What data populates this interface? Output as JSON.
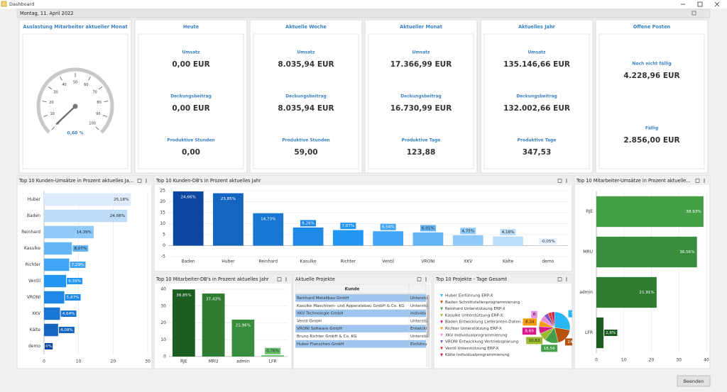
{
  "window_title": "Dashboard",
  "date": "Montag, 11. April 2022",
  "gauge": {
    "title": "Auslastung Mitarbeiter aktueller Monat",
    "ticks": [
      0,
      10,
      20,
      30,
      40,
      50,
      60,
      70,
      80,
      90,
      100
    ],
    "value": 0.6,
    "value_label": "0,60 %"
  },
  "kpis": [
    {
      "title": "Heute",
      "items": [
        {
          "label": "Umsatz",
          "value": "0,00 EUR"
        },
        {
          "label": "Deckungsbeitrag",
          "value": "0,00 EUR"
        },
        {
          "label": "Produktive Stunden",
          "value": "0,00"
        }
      ]
    },
    {
      "title": "Aktuelle Woche",
      "items": [
        {
          "label": "Umsatz",
          "value": "8.035,94 EUR"
        },
        {
          "label": "Deckungsbeitrag",
          "value": "8.035,94 EUR"
        },
        {
          "label": "Produktive Stunden",
          "value": "59,00"
        }
      ]
    },
    {
      "title": "Aktueller Monat",
      "items": [
        {
          "label": "Umsatz",
          "value": "17.366,99 EUR"
        },
        {
          "label": "Deckungsbeitrag",
          "value": "16.730,99 EUR"
        },
        {
          "label": "Produktive Tage",
          "value": "123,88"
        }
      ]
    },
    {
      "title": "Aktuelles Jahr",
      "items": [
        {
          "label": "Umsatz",
          "value": "135.146,66 EUR"
        },
        {
          "label": "Deckungsbeitrag",
          "value": "132.002,66 EUR"
        },
        {
          "label": "Produktive Tage",
          "value": "347,53"
        }
      ]
    },
    {
      "title": "Offene Posten",
      "items": [
        {
          "label": "Noch nicht fällig",
          "value": "4.228,96 EUR"
        },
        {
          "label": "Fällig",
          "value": "2.856,00 EUR"
        }
      ]
    }
  ],
  "charts": [
    {
      "type": "hbar",
      "title": "Top 10 Kunden-Umsätze in Prozent aktuelles Ja...",
      "categories": [
        "Huber",
        "Baden",
        "Reinhard",
        "Kasulke",
        "Richter",
        "Ventil",
        "VRONI",
        "XKV",
        "Kälte",
        "demo"
      ],
      "values": [
        25.18,
        24.08,
        14.39,
        8.07,
        7.29,
        6.39,
        5.87,
        4.64,
        4.08,
        0
      ],
      "value_labels": [
        "25,18%",
        "24,08%",
        "14,39%",
        "8,07%",
        "7,29%",
        "6,39%",
        "5,87%",
        "4,64%",
        "4,08%",
        "0%"
      ],
      "colors": [
        "#dcebfb",
        "#bcdcf8",
        "#90caf9",
        "#64b5f6",
        "#42a5f5",
        "#2196f3",
        "#1e88e5",
        "#1976d2",
        "#1565c0",
        "#0d47a1"
      ],
      "xlim": [
        0,
        30
      ],
      "xticks": [
        0,
        10,
        20,
        30
      ]
    },
    {
      "type": "bar",
      "title": "Top 10 Kunden-DB's in Prozent aktuelles Jahr",
      "categories": [
        "Baden",
        "Huber",
        "Reinhard",
        "Kasulke",
        "Richter",
        "Ventil",
        "VRONI",
        "XKV",
        "Kälte",
        "demo"
      ],
      "values": [
        24.66,
        23.85,
        14.73,
        8.26,
        7.07,
        6.54,
        6.01,
        4.75,
        4.18,
        -0.05
      ],
      "value_labels": [
        "24,66%",
        "23,85%",
        "14,73%",
        "8,26%",
        "7,07%",
        "6,54%",
        "6,01%",
        "4,75%",
        "4,18%",
        "-0,05%"
      ],
      "colors": [
        "#0d47a1",
        "#1565c0",
        "#1976d2",
        "#1e88e5",
        "#2196f3",
        "#42a5f5",
        "#64b5f6",
        "#90caf9",
        "#bbdefb",
        "#e3f2fd"
      ],
      "ylim": [
        -5,
        25
      ],
      "yticks": [
        -5,
        0,
        5,
        10,
        15,
        20,
        25
      ]
    },
    {
      "type": "hbar",
      "title": "Top 10 Mitarbeiter-Umsätze in Prozent aktuelle...",
      "categories": [
        "RJE",
        "MRU",
        "admin",
        "LFR"
      ],
      "values": [
        38.93,
        36.56,
        21.91,
        2.6
      ],
      "value_labels": [
        "38,93%",
        "36,56%",
        "21,91%",
        "2,6%"
      ],
      "colors": [
        "#43a047",
        "#388e3c",
        "#2e7d32",
        "#1b5e20"
      ],
      "xlim": [
        0,
        40
      ],
      "xticks": [
        0,
        10,
        20,
        30,
        40
      ]
    },
    {
      "type": "bar",
      "title": "Top 10 Mitarbeiter-DB's in Prozent aktuelles Jahr",
      "categories": [
        "RJE",
        "MRU",
        "admin",
        "LFR"
      ],
      "values": [
        39.85,
        37.43,
        21.96,
        0.76
      ],
      "value_labels": [
        "39,85%",
        "37,43%",
        "21,96%",
        "0,76%"
      ],
      "colors": [
        "#1b5e20",
        "#2e7d32",
        "#388e3c",
        "#66bb6a"
      ],
      "ylim": [
        0,
        40
      ],
      "yticks": [
        0,
        10,
        20,
        30,
        40
      ]
    },
    {
      "type": "pie",
      "title": "Top 10 Projekte - Tage Gesamt",
      "categories": [
        "Huber Einführung ERP-X",
        "Baden Schnittstellenprogrammierung",
        "Reinhard Unterstützung ERP-X",
        "Kasulke Unterstützung ERP-X",
        "Baden Entwicklung Lieferanten-Daten...",
        "Richter Unterstützung ERP-X",
        "XKV Individualprogrammierung",
        "VRONI Entwicklung Vertriebsplanung",
        "Ventil Unterstützung ERP-X",
        "Kälte Individualprogrammierung"
      ],
      "values": [
        36,
        24.22,
        18.56,
        10.63,
        9.69,
        8.34,
        8,
        6,
        5,
        4
      ],
      "value_labels": [
        "36,",
        "24,22",
        "18,56",
        "10,63",
        "9,69",
        "8,34",
        "8",
        null,
        null,
        null
      ],
      "colors": [
        "#29b6f6",
        "#b5530f",
        "#43a047",
        "#9bbb2e",
        "#d81b8c",
        "#f59a0a",
        "#e88ee0",
        "#7e57c2",
        "#e53935",
        "#c2185b"
      ]
    }
  ],
  "projects": {
    "title": "Aktuelle Projekte",
    "columns": [
      "Kunde"
    ],
    "rows": [
      [
        "Reinhard Metallbau GmbH",
        "Unterstü"
      ],
      [
        "Kasulke Maschinen- und Apparatebau GmbH & Co. KG",
        "Unterstü"
      ],
      [
        "XKV Technologie GmbH",
        "Individu"
      ],
      [
        "Ventil GmbH",
        "Unterstü"
      ],
      [
        "VRONI Software GmbH",
        "Entwickl"
      ],
      [
        "Bruno Richter GmbH & Co. KG",
        "Unterstü"
      ],
      [
        "Huber Flanschen GmbH",
        "Einführu"
      ]
    ]
  },
  "button": "Beenden"
}
